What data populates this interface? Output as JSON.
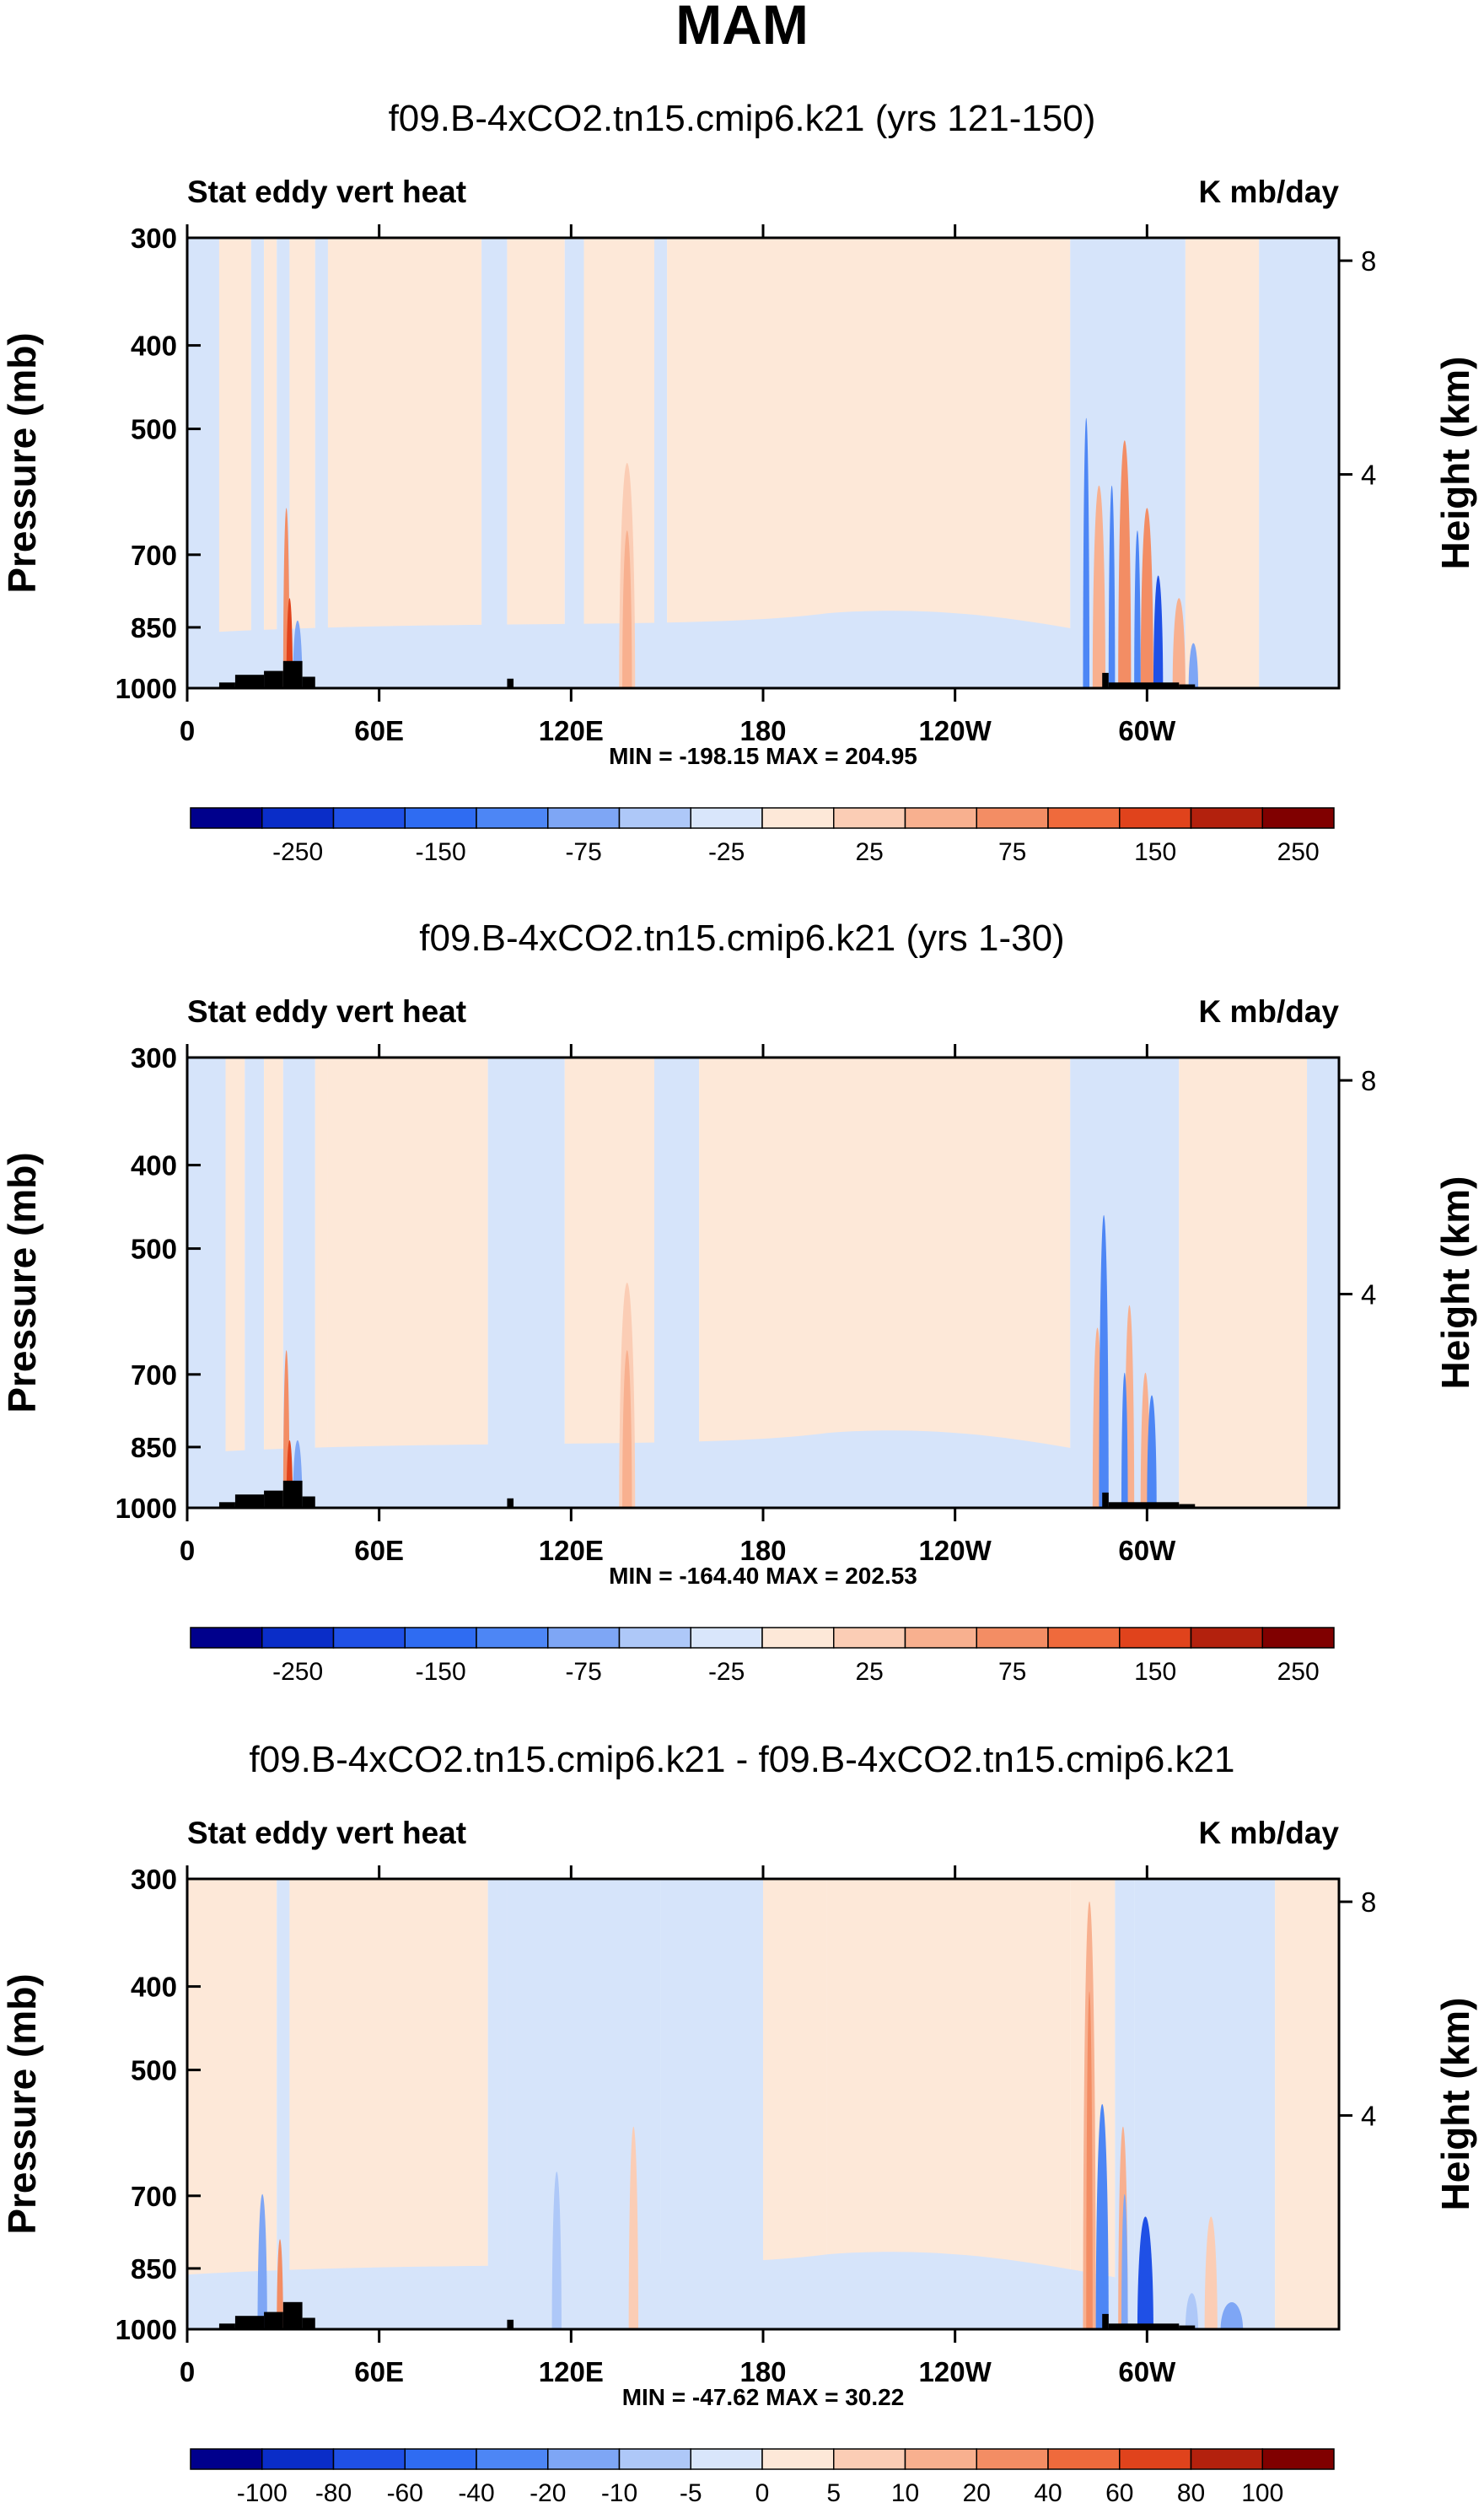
{
  "figure_title": "MAM",
  "colors": {
    "pos1": "#fde8d8",
    "neg1": "#d6e4fa",
    "terrain": "#000000",
    "main_cbar": [
      "#00008c",
      "#0a2dc8",
      "#1f50e6",
      "#2f6cf2",
      "#4d86f5",
      "#7ea6f5",
      "#aec8f8",
      "#d9e6fb",
      "#fde8d8",
      "#fbcdb5",
      "#f8b08f",
      "#f38d64",
      "#ef6a3c",
      "#e0431c",
      "#b3210d",
      "#800000"
    ],
    "diff_cbar": [
      "#00008c",
      "#0a2dc8",
      "#1f50e6",
      "#2f6cf2",
      "#4d86f5",
      "#7ea6f5",
      "#aec8f8",
      "#d9e6fb",
      "#fde8d8",
      "#fbcdb5",
      "#f8b08f",
      "#f38d64",
      "#ef6a3c",
      "#e0431c",
      "#b3210d",
      "#800000"
    ]
  },
  "chart_data": [
    {
      "type": "heatmap",
      "title": "f09.B-4xCO2.tn15.cmip6.k21 (yrs 121-150)",
      "left_label": "Stat eddy vert heat",
      "right_label": "K mb/day",
      "ylabel": "Pressure (mb)",
      "ylabel_right": "Height (km)",
      "yticks": [
        "300",
        "400",
        "500",
        "700",
        "850",
        "1000"
      ],
      "yticks_right": [
        "8",
        "4"
      ],
      "xticks": [
        "0",
        "60E",
        "120E",
        "180",
        "120W",
        "60W"
      ],
      "xlim": [
        0,
        360
      ],
      "ylim": [
        1000,
        300
      ],
      "minmax": "MIN = -198.15  MAX = 204.95",
      "colorbar_labels": [
        "-250",
        "-150",
        "-75",
        "-25",
        "25",
        "75",
        "150",
        "250"
      ],
      "min": -198.15,
      "max": 204.95,
      "positive_cells": [
        [
          30,
          32,
          0.6,
          "#f38d64"
        ],
        [
          31,
          33,
          0.8,
          "#e0431c"
        ],
        [
          135,
          140,
          0.5,
          "#fbcdb5"
        ],
        [
          136,
          139,
          0.65,
          "#f8b08f"
        ],
        [
          283,
          287,
          0.55,
          "#f8b08f"
        ],
        [
          291,
          295,
          0.45,
          "#f38d64"
        ],
        [
          298,
          302,
          0.6,
          "#f38d64"
        ],
        [
          308,
          312,
          0.8,
          "#f8b08f"
        ]
      ],
      "negative_cells": [
        [
          33,
          36,
          0.85,
          "#7ea6f5"
        ],
        [
          280,
          282,
          0.4,
          "#4d86f5"
        ],
        [
          288,
          290,
          0.55,
          "#4d86f5"
        ],
        [
          296,
          298,
          0.65,
          "#4d86f5"
        ],
        [
          302,
          305,
          0.75,
          "#1f50e6"
        ],
        [
          313,
          316,
          0.9,
          "#7ea6f5"
        ]
      ]
    },
    {
      "type": "heatmap",
      "title": "f09.B-4xCO2.tn15.cmip6.k21 (yrs 1-30)",
      "left_label": "Stat eddy vert heat",
      "right_label": "K mb/day",
      "ylabel": "Pressure (mb)",
      "ylabel_right": "Height (km)",
      "yticks": [
        "300",
        "400",
        "500",
        "700",
        "850",
        "1000"
      ],
      "yticks_right": [
        "8",
        "4"
      ],
      "xticks": [
        "0",
        "60E",
        "120E",
        "180",
        "120W",
        "60W"
      ],
      "xlim": [
        0,
        360
      ],
      "ylim": [
        1000,
        300
      ],
      "minmax": "MIN = -164.40  MAX = 202.53",
      "colorbar_labels": [
        "-250",
        "-150",
        "-75",
        "-25",
        "25",
        "75",
        "150",
        "250"
      ],
      "min": -164.4,
      "max": 202.53,
      "positive_cells": [
        [
          30,
          32,
          0.65,
          "#f38d64"
        ],
        [
          31,
          33,
          0.85,
          "#e0431c"
        ],
        [
          135,
          140,
          0.5,
          "#fbcdb5"
        ],
        [
          136,
          139,
          0.65,
          "#f8b08f"
        ],
        [
          283,
          286,
          0.6,
          "#f8b08f"
        ],
        [
          293,
          296,
          0.55,
          "#f8b08f"
        ],
        [
          298,
          301,
          0.7,
          "#f8b08f"
        ]
      ],
      "negative_cells": [
        [
          33,
          36,
          0.85,
          "#7ea6f5"
        ],
        [
          285,
          288,
          0.35,
          "#4d86f5"
        ],
        [
          292,
          294,
          0.7,
          "#4d86f5"
        ],
        [
          300,
          303,
          0.75,
          "#4d86f5"
        ]
      ]
    },
    {
      "type": "heatmap",
      "title": "f09.B-4xCO2.tn15.cmip6.k21 - f09.B-4xCO2.tn15.cmip6.k21",
      "left_label": "Stat eddy vert heat",
      "right_label": "K mb/day",
      "ylabel": "Pressure (mb)",
      "ylabel_right": "Height (km)",
      "yticks": [
        "300",
        "400",
        "500",
        "700",
        "850",
        "1000"
      ],
      "yticks_right": [
        "8",
        "4"
      ],
      "xticks": [
        "0",
        "60E",
        "120E",
        "180",
        "120W",
        "60W"
      ],
      "xlim": [
        0,
        360
      ],
      "ylim": [
        1000,
        300
      ],
      "minmax": "MIN = -47.62  MAX = 30.22",
      "colorbar_labels": [
        "-100",
        "-80",
        "-60",
        "-40",
        "-20",
        "-10",
        "-5",
        "0",
        "5",
        "10",
        "20",
        "40",
        "60",
        "80",
        "100"
      ],
      "min": -47.62,
      "max": 30.22,
      "positive_cells": [
        [
          28,
          30,
          0.8,
          "#f38d64"
        ],
        [
          138,
          141,
          0.55,
          "#fbcdb5"
        ],
        [
          280,
          284,
          0.05,
          "#f8b08f"
        ],
        [
          281,
          283,
          0.25,
          "#f38d64"
        ],
        [
          291,
          294,
          0.55,
          "#f8b08f"
        ],
        [
          318,
          322,
          0.75,
          "#fbcdb5"
        ]
      ],
      "negative_cells": [
        [
          22,
          25,
          0.7,
          "#7ea6f5"
        ],
        [
          114,
          117,
          0.65,
          "#aec8f8"
        ],
        [
          284,
          288,
          0.5,
          "#4d86f5"
        ],
        [
          292,
          294,
          0.7,
          "#7ea6f5"
        ],
        [
          297,
          302,
          0.75,
          "#1f50e6"
        ],
        [
          312,
          316,
          0.92,
          "#aec8f8"
        ],
        [
          323,
          330,
          0.94,
          "#7ea6f5"
        ]
      ]
    }
  ]
}
